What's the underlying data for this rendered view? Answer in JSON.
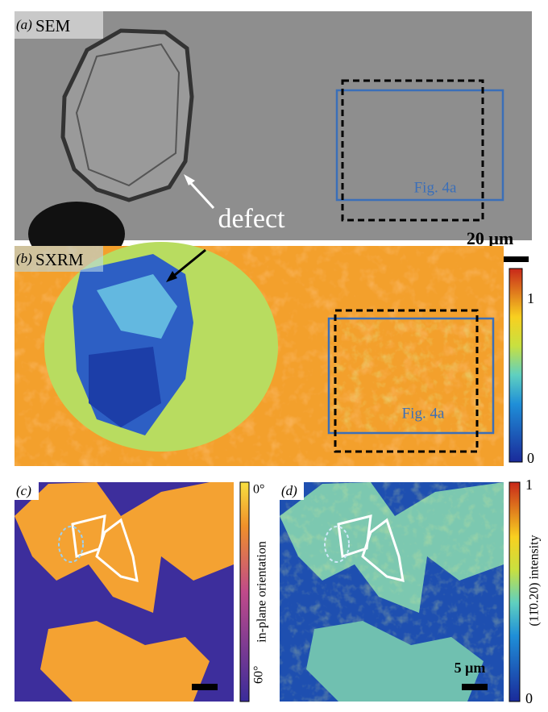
{
  "panels": [
    {
      "label": "(a)",
      "title": "SEM",
      "box_label": "Fig. 4a",
      "annotation": "defect",
      "scale_bar": "20 μm"
    },
    {
      "label": "(b)",
      "title": "SXRM",
      "box_label": "Fig. 4a",
      "colorbar": {
        "max": "1",
        "min": "0"
      }
    },
    {
      "label": "(c)",
      "colorbar": {
        "title": "in-plane orientation",
        "max": "0°",
        "min": "60°"
      }
    },
    {
      "label": "(d)",
      "scale_bar": "5 μm",
      "colorbar": {
        "title": "(11̄0.20) intensity",
        "max": "1",
        "min": "0"
      }
    }
  ]
}
